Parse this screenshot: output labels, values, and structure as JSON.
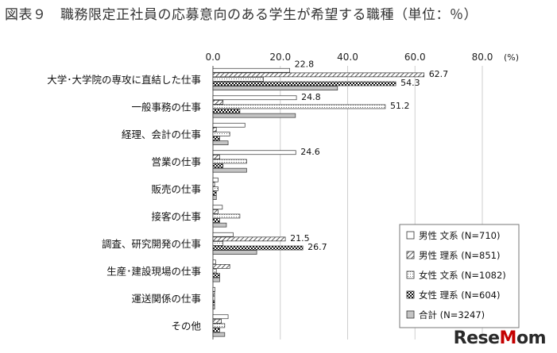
{
  "title": "図表９　職務限定正社員の応募意向のある学生が希望する職種（単位：％）",
  "watermark": {
    "left": "Rese",
    "accent": "M",
    "right": "om"
  },
  "chart_data": {
    "type": "bar",
    "orientation": "horizontal",
    "xlim": [
      0,
      80
    ],
    "ticks": [
      "0.0",
      "20.0",
      "40.0",
      "60.0",
      "80.0"
    ],
    "tick_values": [
      0,
      20,
      40,
      60,
      80
    ],
    "unit_label": "(%)",
    "grid": true,
    "legend_position": "bottom-right",
    "categories": [
      "大学･大学院の専攻に直結した仕事",
      "一般事務の仕事",
      "経理、会計の仕事",
      "営業の仕事",
      "販売の仕事",
      "接客の仕事",
      "調査、研究開発の仕事",
      "生産･建設現場の仕事",
      "運送関係の仕事",
      "その他"
    ],
    "series": [
      {
        "name": "男性 文系 (N=710)",
        "pattern": "white",
        "values": [
          22.8,
          24.8,
          9.5,
          24.6,
          1.5,
          2.8,
          6.0,
          0.8,
          0.6,
          4.5
        ],
        "labels": [
          "22.8",
          "24.8",
          "",
          "24.6",
          "",
          "",
          "",
          "",
          "",
          ""
        ]
      },
      {
        "name": "男性 理系 (N=851)",
        "pattern": "diag",
        "values": [
          62.7,
          3.0,
          1.0,
          2.0,
          0.5,
          1.5,
          21.5,
          5.0,
          0.5,
          2.5
        ],
        "labels": [
          "62.7",
          "",
          "",
          "",
          "",
          "",
          "21.5",
          "",
          "",
          ""
        ]
      },
      {
        "name": "女性 文系 (N=1082)",
        "pattern": "light",
        "values": [
          15.0,
          51.2,
          5.0,
          10.0,
          1.5,
          8.0,
          3.0,
          1.0,
          0.5,
          3.5
        ],
        "labels": [
          "",
          "51.2",
          "",
          "",
          "",
          "",
          "",
          "",
          "",
          ""
        ]
      },
      {
        "name": "女性 理系 (N=604)",
        "pattern": "check",
        "values": [
          54.3,
          8.0,
          2.0,
          3.0,
          1.0,
          2.0,
          26.7,
          2.0,
          0.5,
          2.0
        ],
        "labels": [
          "54.3",
          "",
          "",
          "",
          "",
          "",
          "26.7",
          "",
          "",
          ""
        ]
      },
      {
        "name": "合計 (N=3247)",
        "pattern": "gray",
        "values": [
          37.0,
          24.5,
          4.5,
          10.0,
          1.0,
          4.0,
          13.0,
          2.0,
          0.5,
          3.5
        ],
        "labels": [
          "",
          "",
          "",
          "",
          "",
          "",
          "",
          "",
          "",
          ""
        ]
      }
    ]
  }
}
